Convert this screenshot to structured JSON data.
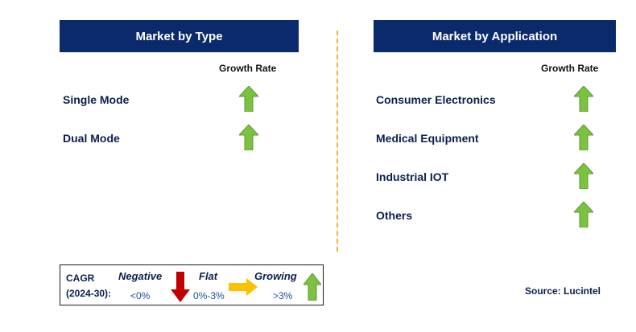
{
  "left_panel": {
    "title": "Market by Type",
    "column_header": "Growth Rate",
    "rows": [
      {
        "label": "Single Mode",
        "trend": "growing"
      },
      {
        "label": "Dual Mode",
        "trend": "growing"
      }
    ]
  },
  "right_panel": {
    "title": "Market by Application",
    "column_header": "Growth Rate",
    "rows": [
      {
        "label": "Consumer Electronics",
        "trend": "growing"
      },
      {
        "label": "Medical Equipment",
        "trend": "growing"
      },
      {
        "label": "Industrial IOT",
        "trend": "growing"
      },
      {
        "label": "Others",
        "trend": "growing"
      }
    ]
  },
  "legend": {
    "cagr_label": "CAGR",
    "period": "(2024-30):",
    "negative": {
      "label": "Negative",
      "range": "<0%",
      "icon": "red-down-arrow-icon"
    },
    "flat": {
      "label": "Flat",
      "range": "0%-3%",
      "icon": "yellow-right-arrow-icon"
    },
    "growing": {
      "label": "Growing",
      "range": ">3%",
      "icon": "green-up-arrow-icon"
    }
  },
  "source": "Source: Lucintel",
  "colors": {
    "header_bg": "#0a2a6b",
    "growing": "#7cc242",
    "negative": "#c00000",
    "flat": "#ffc000",
    "divider": "#f2b233"
  }
}
